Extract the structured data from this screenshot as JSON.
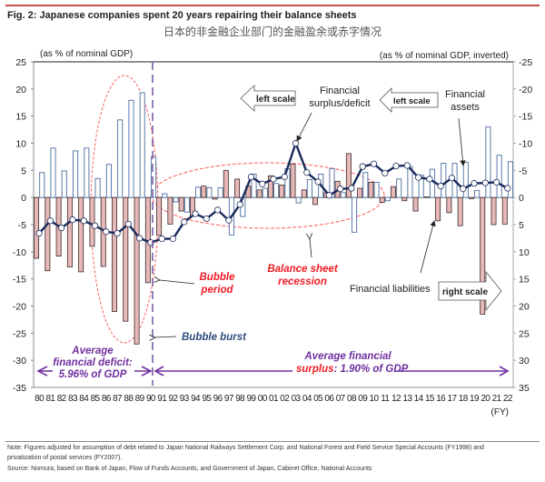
{
  "header": {
    "title": "Fig. 2: Japanese companies spent 20 years repairing their balance sheets",
    "subtitle": "日本的非金融企业部门的金融盈余或赤字情况"
  },
  "colors": {
    "assets_stroke": "#5b7ba8",
    "liabilities_fill": "#e6b8b7",
    "liabilities_stroke": "#3a2a2a",
    "line": "#1a2b5c",
    "annotation_red": "#ee1c25",
    "annotation_purple": "#7030a0",
    "annotation_blue": "#2e4d7f",
    "ellipse": "#ff5a5a",
    "divider": "#7a5fa8"
  },
  "chart_data": {
    "type": "bar",
    "title": "Fig. 2: Japanese companies spent 20 years repairing their balance sheets",
    "left_axis_label": "(as % of nominal GDP)",
    "right_axis_label": "(as % of nominal GDP, inverted)",
    "xlabel": "(FY)",
    "ylim_left": [
      -35,
      25
    ],
    "ylim_right_inverted": [
      35,
      -25
    ],
    "left_ticks": [
      "25",
      "20",
      "15",
      "10",
      "5",
      "0",
      "-5",
      "-10",
      "-15",
      "-20",
      "-25",
      "-30",
      "-35"
    ],
    "right_ticks": [
      "-25",
      "-20",
      "-15",
      "-10",
      "-5",
      "0",
      "5",
      "10",
      "15",
      "20",
      "25",
      "30",
      "35"
    ],
    "categories": [
      "80",
      "81",
      "82",
      "83",
      "84",
      "85",
      "86",
      "87",
      "88",
      "89",
      "90",
      "91",
      "92",
      "93",
      "94",
      "95",
      "96",
      "97",
      "98",
      "99",
      "00",
      "01",
      "02",
      "03",
      "04",
      "05",
      "06",
      "07",
      "08",
      "09",
      "10",
      "11",
      "12",
      "13",
      "14",
      "15",
      "16",
      "17",
      "18",
      "19",
      "20",
      "21",
      "22"
    ],
    "series": [
      {
        "name": "Financial assets",
        "scale": "left",
        "kind": "bar-outline",
        "values": [
          4.6,
          9.1,
          4.9,
          8.6,
          9.1,
          3.5,
          6.1,
          14.3,
          17.9,
          19.3,
          7.5,
          0.7,
          -0.8,
          -2.7,
          1.9,
          1.8,
          1.8,
          -6.9,
          -3.5,
          4.3,
          1.7,
          2.6,
          5.3,
          -1.0,
          3.3,
          4.3,
          5.3,
          0.9,
          -6.4,
          4.6,
          2.8,
          -0.6,
          3.4,
          5.7,
          4.1,
          5.2,
          6.3,
          6.3,
          6.5,
          1.3,
          13.0,
          7.8,
          6.6
        ]
      },
      {
        "name": "Financial liabilities",
        "scale": "right-inverted",
        "kind": "bar-filled",
        "values": [
          11.2,
          13.5,
          10.8,
          12.8,
          13.7,
          9.0,
          12.7,
          21.0,
          22.8,
          27.0,
          15.7,
          7.0,
          4.9,
          2.5,
          3.4,
          -2.1,
          0.3,
          -5.0,
          -3.4,
          -2.1,
          -1.4,
          -4.0,
          -2.3,
          -6.2,
          -1.4,
          1.3,
          -0.9,
          -3.0,
          -8.1,
          -1.7,
          -2.8,
          0.9,
          -2.0,
          0.6,
          2.5,
          -0.1,
          4.3,
          2.8,
          5.2,
          0.2,
          21.5,
          5.0,
          4.9
        ]
      },
      {
        "name": "Financial surplus/deficit",
        "scale": "left",
        "kind": "line-markers",
        "values": [
          -6.6,
          -4.3,
          -5.6,
          -4.1,
          -4.3,
          -5.2,
          -6.3,
          -6.6,
          -4.9,
          -7.5,
          -8.3,
          -7.6,
          -7.6,
          -4.5,
          -3.0,
          -3.9,
          -2.3,
          -4.2,
          -1.3,
          3.8,
          2.5,
          3.4,
          3.8,
          10.0,
          4.6,
          2.9,
          0.4,
          1.6,
          1.7,
          5.7,
          6.2,
          4.5,
          5.8,
          5.9,
          3.7,
          3.4,
          2.1,
          3.6,
          1.6,
          2.6,
          2.7,
          2.8,
          1.7
        ]
      }
    ],
    "annotations": [
      {
        "text": "left scale",
        "kind": "arrow-left-box"
      },
      {
        "text": "Financial surplus/deficit",
        "kind": "label"
      },
      {
        "text": "left scale",
        "kind": "arrow-left-box"
      },
      {
        "text": "Financial assets",
        "kind": "label"
      },
      {
        "text": "Financial liabilities",
        "kind": "label"
      },
      {
        "text": "right scale",
        "kind": "arrow-right-box"
      },
      {
        "text": "Bubble period",
        "kind": "red-italic"
      },
      {
        "text": "Balance sheet recession",
        "kind": "red-italic"
      },
      {
        "text": "Bubble burst",
        "kind": "blue-italic"
      },
      {
        "text": "Average financial deficit: 5.96% of GDP",
        "kind": "purple-italic"
      },
      {
        "text": "Average financial surplus: 1.90% of GDP",
        "kind": "purple-italic"
      }
    ],
    "grid": false,
    "legend": "none"
  },
  "labels": {
    "left_axis_label": "(as % of nominal GDP)",
    "right_axis_label": "(as % of nominal GDP, inverted)",
    "fy": "(FY)",
    "left_scale_1": "left scale",
    "left_scale_2": "left scale",
    "right_scale": "right scale",
    "fin_surplus_1": "Financial",
    "fin_surplus_2": "surplus/deficit",
    "fin_assets_1": "Financial",
    "fin_assets_2": "assets",
    "fin_liab": "Financial liabilities",
    "bubble_1": "Bubble",
    "bubble_2": "period",
    "bsr_1": "Balance sheet",
    "bsr_2": "recession",
    "burst": "Bubble burst",
    "deficit_1": "Average",
    "deficit_2": "financial deficit:",
    "deficit_3": "5.96% of GDP",
    "surplus_1": "Average financial",
    "surplus_2a": "surplus",
    "surplus_2b": ": 1.90% of GDP"
  },
  "footer": {
    "note_1": "Note: Figures adjusted for assumption of debt related to Japan National Railways Settlement Corp. and National Forest and Field Service Special Accounts (FY1998) and",
    "note_2": "privatization of postal services (FY2007).",
    "source": "Source: Nomura, based on Bank of Japan, Flow of Funds Accounts, and Government of Japan, Cabinet Office, National Accounts"
  }
}
